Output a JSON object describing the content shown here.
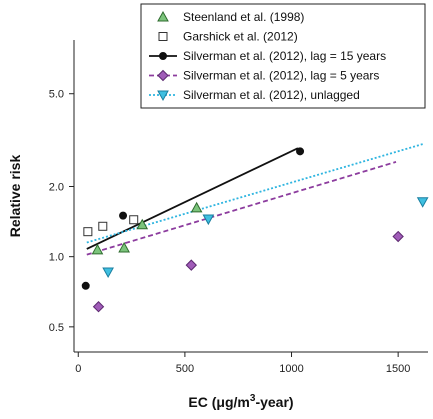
{
  "chart_data": {
    "type": "scatter",
    "xlabel": "EC (μg/m3-year)",
    "xlabel_parts": {
      "main": "EC (μg/m",
      "sup": "3",
      "tail": "-year)"
    },
    "ylabel": "Relative risk",
    "xlim": [
      -20,
      1640
    ],
    "ylim": [
      0.39,
      8.5
    ],
    "yscale": "log",
    "grid": false,
    "legend_position": "top-right",
    "x_ticks": [
      {
        "value": 0,
        "label": "0"
      },
      {
        "value": 500,
        "label": "500"
      },
      {
        "value": 1000,
        "label": "1000"
      },
      {
        "value": 1500,
        "label": "1500"
      }
    ],
    "y_ticks": [
      {
        "value": 0.5,
        "label": "0.5"
      },
      {
        "value": 1.0,
        "label": "1.0"
      },
      {
        "value": 2.0,
        "label": "2.0"
      },
      {
        "value": 5.0,
        "label": "5.0"
      }
    ],
    "series": [
      {
        "name": "Steenland et al. (1998)",
        "marker": "triangle-up",
        "color": "#7cc47c",
        "stroke": "#2e6b2e",
        "points": [
          [
            90,
            1.07
          ],
          [
            215,
            1.09
          ],
          [
            300,
            1.37
          ],
          [
            555,
            1.62
          ]
        ]
      },
      {
        "name": "Garshick et al. (2012)",
        "marker": "square-open",
        "color": "#ffffff",
        "stroke": "#333333",
        "points": [
          [
            45,
            1.28
          ],
          [
            115,
            1.35
          ],
          [
            260,
            1.44
          ]
        ]
      },
      {
        "name": "Silverman et al. (2012), lag = 15 years",
        "marker": "circle",
        "color": "#111111",
        "stroke": "#111111",
        "line_color": "#111111",
        "line_dash": "",
        "points": [
          [
            35,
            0.75
          ],
          [
            210,
            1.5
          ],
          [
            1040,
            2.83
          ]
        ],
        "fit_line": [
          [
            40,
            1.08
          ],
          [
            1030,
            2.92
          ]
        ]
      },
      {
        "name": "Silverman et al. (2012), lag = 5 years",
        "marker": "diamond",
        "color": "#a05cb8",
        "stroke": "#5c2a70",
        "line_color": "#8c3c9e",
        "line_dash": "5,3",
        "points": [
          [
            95,
            0.61
          ],
          [
            530,
            0.92
          ],
          [
            1500,
            1.22
          ]
        ],
        "fit_line": [
          [
            40,
            1.02
          ],
          [
            1490,
            2.55
          ]
        ]
      },
      {
        "name": "Silverman et al. (2012), unlagged",
        "marker": "triangle-down",
        "color": "#3fbfe0",
        "stroke": "#1a7fa0",
        "line_color": "#2fb5e0",
        "line_dash": "2,2",
        "points": [
          [
            140,
            0.86
          ],
          [
            610,
            1.45
          ],
          [
            1615,
            1.72
          ]
        ],
        "fit_line": [
          [
            40,
            1.15
          ],
          [
            1620,
            3.05
          ]
        ]
      }
    ]
  }
}
